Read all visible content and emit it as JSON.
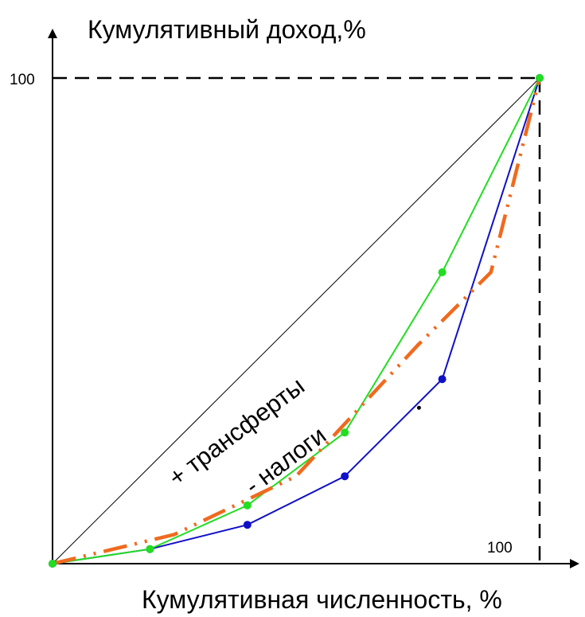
{
  "chart_data": {
    "type": "line",
    "title": "",
    "ylabel": "Кумулятивный доход,%",
    "xlabel": "Кумулятивная численность, %",
    "x_tick": "100",
    "y_tick": "100",
    "xlim": [
      0,
      100
    ],
    "ylim": [
      0,
      100
    ],
    "equality_line": [
      [
        0,
        0
      ],
      [
        100,
        100
      ]
    ],
    "series": [
      {
        "key": "before",
        "color": "#1010c8",
        "points": [
          [
            0,
            0
          ],
          [
            20,
            3
          ],
          [
            40,
            8
          ],
          [
            60,
            18
          ],
          [
            80,
            38
          ],
          [
            100,
            100
          ]
        ]
      },
      {
        "key": "after",
        "color": "#22dd22",
        "points": [
          [
            0,
            0
          ],
          [
            20,
            3
          ],
          [
            40,
            12
          ],
          [
            60,
            27
          ],
          [
            80,
            60
          ],
          [
            100,
            100
          ]
        ]
      },
      {
        "key": "trend",
        "color": "#f06a1e",
        "points": [
          [
            0,
            0
          ],
          [
            25,
            6
          ],
          [
            50,
            18
          ],
          [
            75,
            45
          ],
          [
            90,
            60
          ],
          [
            100,
            100
          ]
        ]
      }
    ],
    "annotations": {
      "transfers": "+ трансферты",
      "taxes": "- налоги"
    }
  }
}
